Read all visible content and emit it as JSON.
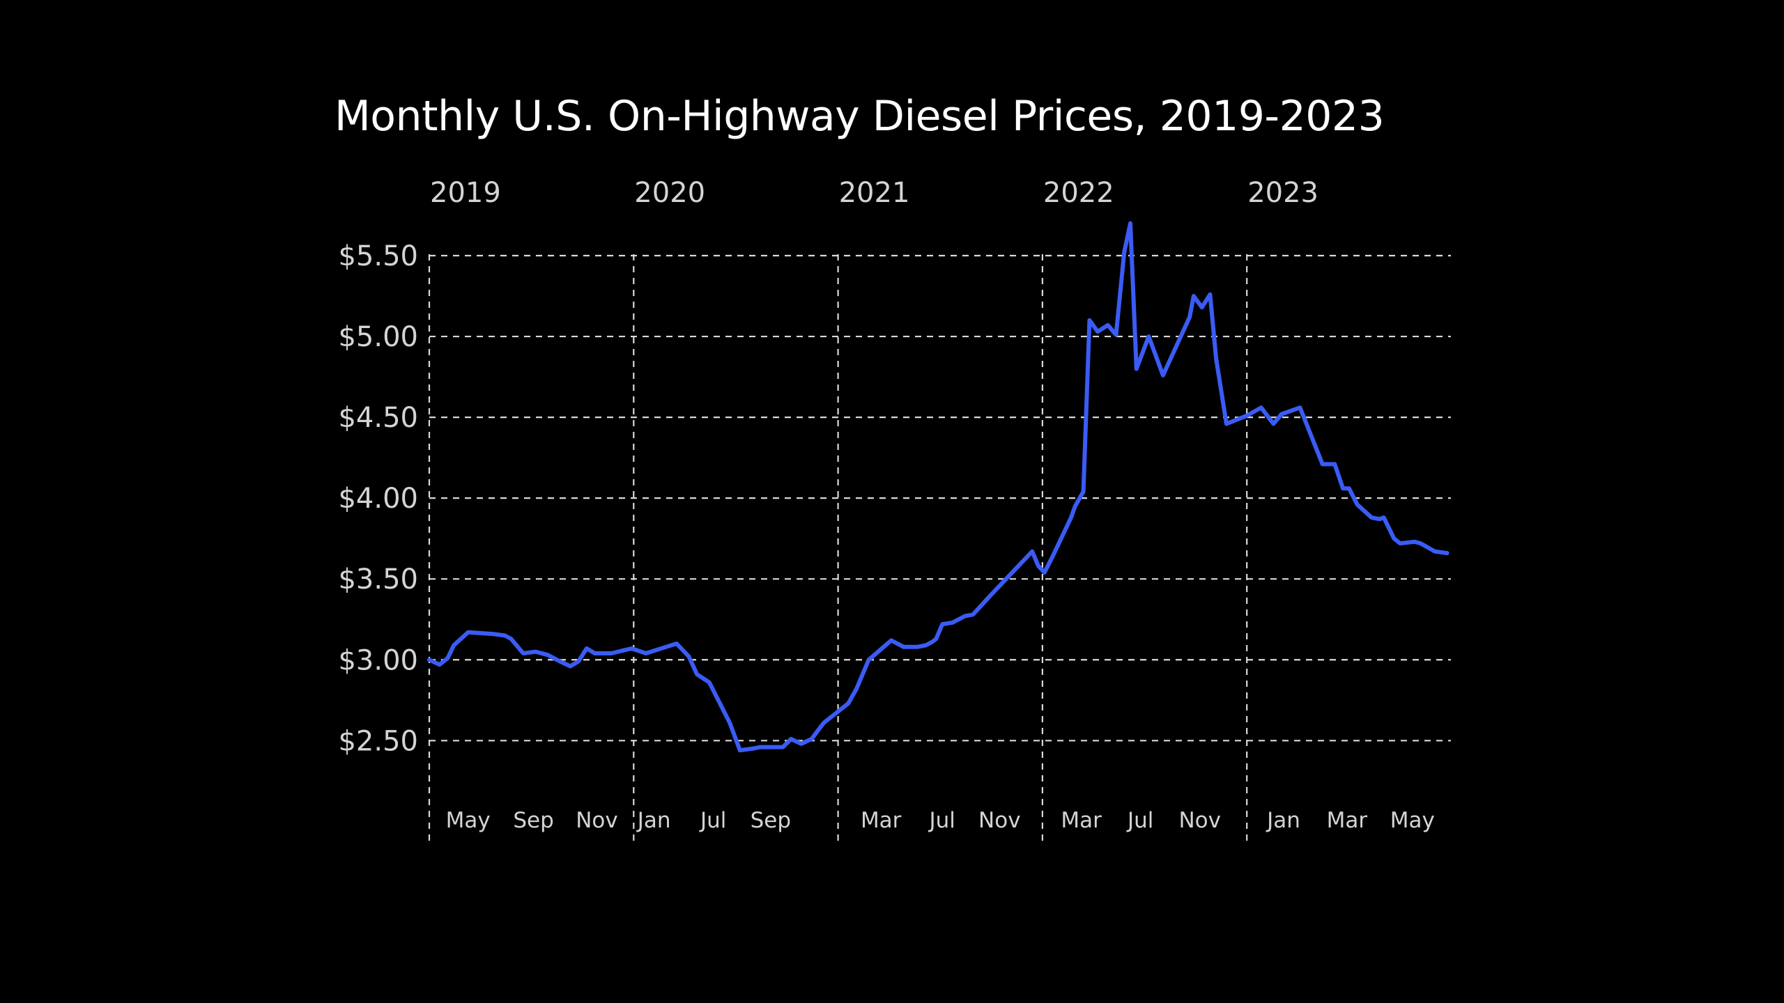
{
  "chart_data": {
    "type": "line",
    "title": "Monthly U.S. On-Highway Diesel Prices, 2019-2023",
    "xlabel": "",
    "ylabel": "",
    "grid": true,
    "legend": "none",
    "line_color": "#3a5cf5",
    "background_color": "#000000",
    "text_color": "#d4d4d4",
    "xlim": [
      2019.0,
      2024.0
    ],
    "ylim": [
      2.0,
      5.6
    ],
    "y_ticks": [
      {
        "value": 2.5,
        "label": "$2.50"
      },
      {
        "value": 3.0,
        "label": "$3.00"
      },
      {
        "value": 3.5,
        "label": "$3.50"
      },
      {
        "value": 4.0,
        "label": "$4.00"
      },
      {
        "value": 4.5,
        "label": "$4.50"
      },
      {
        "value": 5.0,
        "label": "$5.00"
      },
      {
        "value": 5.5,
        "label": "$5.50"
      }
    ],
    "year_ticks": [
      {
        "x": 2019.0,
        "label": "2019"
      },
      {
        "x": 2020.0,
        "label": "2020"
      },
      {
        "x": 2021.0,
        "label": "2021"
      },
      {
        "x": 2022.0,
        "label": "2022"
      },
      {
        "x": 2023.0,
        "label": "2023"
      }
    ],
    "month_ticks": [
      {
        "x": 2019.19,
        "label": "May"
      },
      {
        "x": 2019.51,
        "label": "Sep"
      },
      {
        "x": 2019.82,
        "label": "Nov"
      },
      {
        "x": 2020.1,
        "label": "Jan"
      },
      {
        "x": 2020.39,
        "label": "Jul"
      },
      {
        "x": 2020.67,
        "label": "Sep"
      },
      {
        "x": 2021.21,
        "label": "Mar"
      },
      {
        "x": 2021.51,
        "label": "Jul"
      },
      {
        "x": 2021.79,
        "label": "Nov"
      },
      {
        "x": 2022.19,
        "label": "Mar"
      },
      {
        "x": 2022.48,
        "label": "Jul"
      },
      {
        "x": 2022.77,
        "label": "Nov"
      },
      {
        "x": 2023.18,
        "label": "Jan"
      },
      {
        "x": 2023.49,
        "label": "Mar"
      },
      {
        "x": 2023.81,
        "label": "May"
      }
    ],
    "series": [
      {
        "x": [
          2019.0,
          2019.05,
          2019.09,
          2019.12,
          2019.19,
          2019.31,
          2019.37,
          2019.4,
          2019.46,
          2019.52,
          2019.58,
          2019.64,
          2019.69,
          2019.73,
          2019.77,
          2019.81,
          2019.89,
          2019.99,
          2020.06,
          2020.16,
          2020.21,
          2020.27,
          2020.31,
          2020.37,
          2020.47,
          2020.52,
          2020.58,
          2020.62,
          2020.67,
          2020.73,
          2020.77,
          2020.82,
          2020.87,
          2020.93,
          2020.96,
          2020.99,
          2021.05,
          2021.09,
          2021.15,
          2021.26,
          2021.32,
          2021.39,
          2021.43,
          2021.46,
          2021.48,
          2021.51,
          2021.56,
          2021.62,
          2021.66,
          2021.74,
          2021.95,
          2021.98,
          2022.01,
          2022.05,
          2022.08,
          2022.14,
          2022.16,
          2022.2,
          2022.23,
          2022.27,
          2022.32,
          2022.36,
          2022.4,
          2022.43,
          2022.46,
          2022.52,
          2022.59,
          2022.72,
          2022.74,
          2022.78,
          2022.82,
          2022.85,
          2022.9,
          2023.0,
          2023.07,
          2023.13,
          2023.17,
          2023.26,
          2023.37,
          2023.43,
          2023.47,
          2023.5,
          2023.54,
          2023.61,
          2023.65,
          2023.67,
          2023.72,
          2023.75,
          2023.82,
          2023.85,
          2023.92,
          2023.98
        ],
        "values": [
          3.0,
          2.97,
          3.01,
          3.09,
          3.17,
          3.16,
          3.15,
          3.13,
          3.04,
          3.05,
          3.03,
          2.99,
          2.96,
          2.99,
          3.07,
          3.04,
          3.04,
          3.07,
          3.04,
          3.08,
          3.1,
          3.02,
          2.91,
          2.86,
          2.61,
          2.44,
          2.45,
          2.46,
          2.46,
          2.46,
          2.51,
          2.48,
          2.51,
          2.61,
          2.64,
          2.67,
          2.73,
          2.82,
          3.0,
          3.12,
          3.08,
          3.08,
          3.09,
          3.11,
          3.13,
          3.22,
          3.23,
          3.27,
          3.28,
          3.39,
          3.67,
          3.58,
          3.54,
          3.64,
          3.72,
          3.88,
          3.95,
          4.04,
          5.1,
          5.03,
          5.07,
          5.01,
          5.52,
          5.7,
          4.8,
          5.0,
          4.76,
          5.12,
          5.25,
          5.18,
          5.26,
          4.86,
          4.46,
          4.51,
          4.56,
          4.46,
          4.52,
          4.56,
          4.21,
          4.21,
          4.06,
          4.06,
          3.96,
          3.88,
          3.87,
          3.88,
          3.75,
          3.72,
          3.73,
          3.72,
          3.67,
          3.66
        ]
      }
    ]
  }
}
